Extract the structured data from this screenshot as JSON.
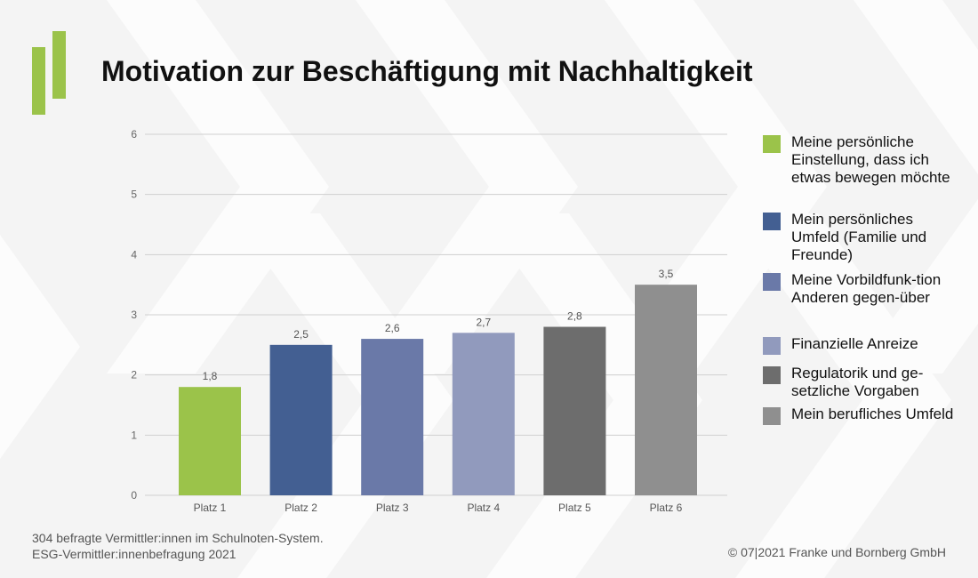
{
  "title": "Motivation zur Beschäftigung mit Nachhaltigkeit",
  "footer": {
    "source_line_1": "304 befragte Vermittler:innen im Schulnoten-System.",
    "source_line_2": "ESG-Vermittler:innenbefragung 2021",
    "copyright": "© 07|2021 Franke und Bornberg GmbH"
  },
  "chart_data": {
    "type": "bar",
    "title": "Motivation zur Beschäftigung mit Nachhaltigkeit",
    "xlabel": "",
    "ylabel": "",
    "ylim": [
      0,
      6
    ],
    "yticks": [
      0,
      1,
      2,
      3,
      4,
      5,
      6
    ],
    "grid": true,
    "legend_position": "right",
    "categories": [
      "Platz 1",
      "Platz 2",
      "Platz 3",
      "Platz 4",
      "Platz 5",
      "Platz 6"
    ],
    "values": [
      1.8,
      2.5,
      2.6,
      2.7,
      2.8,
      3.5
    ],
    "value_labels": [
      "1,8",
      "2,5",
      "2,6",
      "2,7",
      "2,8",
      "3,5"
    ],
    "colors": [
      "#9bc34a",
      "#435f92",
      "#6a79a8",
      "#919abd",
      "#6d6d6d",
      "#8f8f8f"
    ],
    "legend": [
      "Meine persönliche Einstellung, dass ich etwas bewegen möchte",
      "Mein persönliches Umfeld (Familie und Freunde)",
      "Meine Vorbildfunk-tion Anderen gegen-über",
      "Finanzielle Anreize",
      "Regulatorik und ge-setzliche Vorgaben",
      "Mein berufliches Umfeld"
    ]
  }
}
